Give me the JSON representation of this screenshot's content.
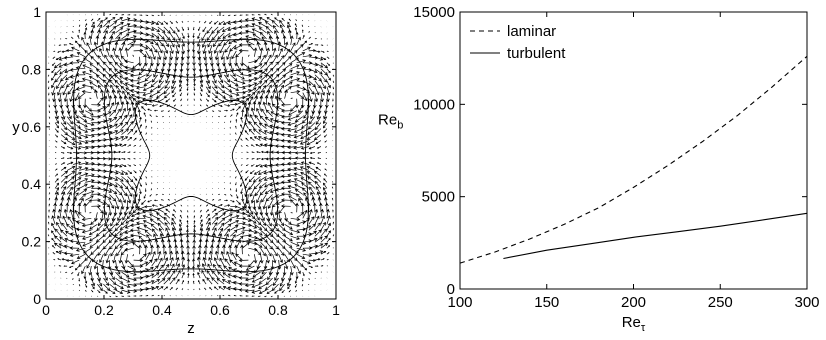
{
  "chart_data": [
    {
      "type": "quiver",
      "xlabel": "z",
      "ylabel": "y",
      "xlim": [
        0,
        1
      ],
      "ylim": [
        0,
        1
      ],
      "xticks": [
        "0",
        "0.2",
        "0.4",
        "0.6",
        "0.8",
        "1"
      ],
      "yticks": [
        "0",
        "0.2",
        "0.4",
        "0.6",
        "0.8",
        "1"
      ],
      "grid": false,
      "contour_levels": [
        0.08,
        0.19,
        0.3
      ],
      "vector_grid": 48
    },
    {
      "type": "line",
      "xlabel": "Re",
      "xlabel_sub": "τ",
      "ylabel": "Re",
      "ylabel_sub": "b",
      "xlim": [
        100,
        300
      ],
      "ylim": [
        0,
        15000
      ],
      "xticks": [
        "100",
        "150",
        "200",
        "250",
        "300"
      ],
      "yticks": [
        "0",
        "5000",
        "10000",
        "15000"
      ],
      "grid": false,
      "legend_position": "top-left",
      "series": [
        {
          "name": "laminar",
          "style": "dashed",
          "color": "#000000",
          "x": [
            100,
            120,
            140,
            160,
            180,
            200,
            220,
            240,
            260,
            280,
            300
          ],
          "y": [
            1400,
            2000,
            2700,
            3500,
            4400,
            5500,
            6700,
            8000,
            9400,
            10950,
            12600
          ]
        },
        {
          "name": "turbulent",
          "style": "solid",
          "color": "#000000",
          "x": [
            125,
            150,
            175,
            200,
            225,
            250,
            275,
            300
          ],
          "y": [
            1650,
            2100,
            2450,
            2800,
            3100,
            3400,
            3750,
            4100
          ]
        }
      ]
    }
  ]
}
